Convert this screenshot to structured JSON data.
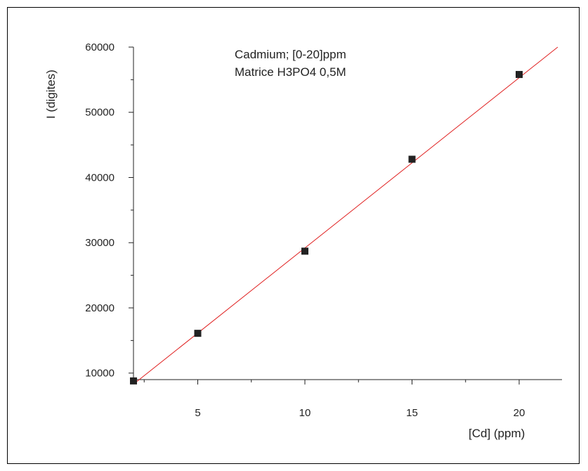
{
  "chart_data": {
    "type": "scatter",
    "title_lines": [
      "Cadmium; [0-20]ppm",
      "Matrice H3PO4 0,5M"
    ],
    "xlabel": "[Cd] (ppm)",
    "ylabel": "I (digites)",
    "xlim": [
      2,
      22
    ],
    "ylim": [
      9000,
      60000
    ],
    "x_ticks": [
      5,
      10,
      15,
      20
    ],
    "x_tick_labels": [
      "5",
      "10",
      "15",
      "20"
    ],
    "y_ticks": [
      10000,
      20000,
      30000,
      40000,
      50000,
      60000
    ],
    "y_tick_labels": [
      "10000",
      "20000",
      "30000",
      "40000",
      "50000",
      "60000"
    ],
    "grid": false,
    "series": [
      {
        "x": [
          2,
          5,
          10,
          15,
          20
        ],
        "y": [
          8800,
          16100,
          28700,
          42800,
          55800
        ],
        "marker": "square",
        "color": "#222222"
      }
    ],
    "fit_line": {
      "x": [
        2,
        21.8
      ],
      "y": [
        8300,
        60000
      ],
      "color": "#e02020"
    }
  }
}
